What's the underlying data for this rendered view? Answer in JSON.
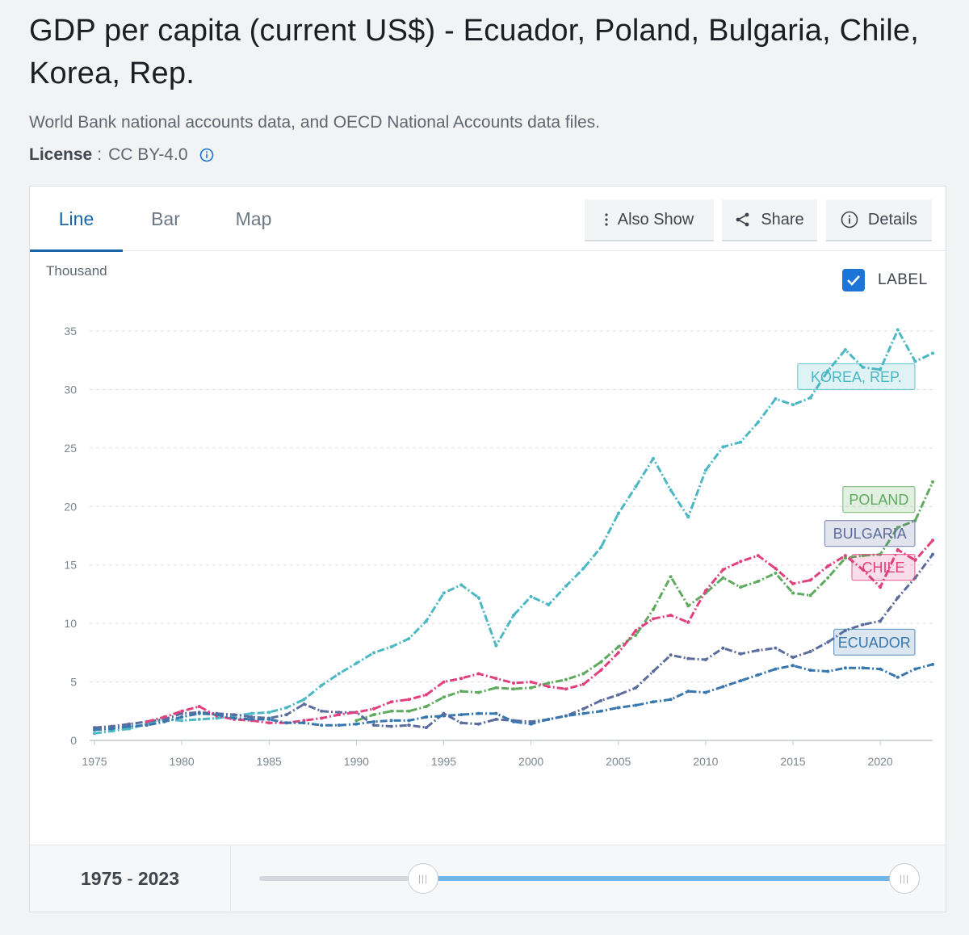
{
  "page": {
    "title": "GDP per capita (current US$) - Ecuador, Poland, Bulgaria, Chile, Korea, Rep.",
    "source": "World Bank national accounts data, and OECD National Accounts data files.",
    "license_label": "License",
    "license_sep": ":",
    "license_value": "CC BY-4.0"
  },
  "tabs": [
    {
      "label": "Line",
      "active": true
    },
    {
      "label": "Bar",
      "active": false
    },
    {
      "label": "Map",
      "active": false
    }
  ],
  "toolbar": {
    "also_show": "Also Show",
    "share": "Share",
    "details": "Details"
  },
  "label_toggle": {
    "text": "LABEL",
    "checked": true
  },
  "range": {
    "start": "1975",
    "sep": "-",
    "end": "2023"
  },
  "icons": {
    "info": "info-icon",
    "more": "more-vertical-icon",
    "share": "share-icon",
    "details": "info-circle-icon",
    "check": "check-icon",
    "handle": "slider-grip-icon"
  },
  "chart_data": {
    "type": "line",
    "unit_label": "Thousand",
    "x": [
      1975,
      1976,
      1977,
      1978,
      1979,
      1980,
      1981,
      1982,
      1983,
      1984,
      1985,
      1986,
      1987,
      1988,
      1989,
      1990,
      1991,
      1992,
      1993,
      1994,
      1995,
      1996,
      1997,
      1998,
      1999,
      2000,
      2001,
      2002,
      2003,
      2004,
      2005,
      2006,
      2007,
      2008,
      2009,
      2010,
      2011,
      2012,
      2013,
      2014,
      2015,
      2016,
      2017,
      2018,
      2019,
      2020,
      2021,
      2022,
      2023
    ],
    "xticks": [
      1975,
      1980,
      1985,
      1990,
      1995,
      2000,
      2005,
      2010,
      2015,
      2020
    ],
    "ylim": [
      0,
      35
    ],
    "yticks": [
      0,
      5,
      10,
      15,
      20,
      25,
      30,
      35
    ],
    "grid": true,
    "series": [
      {
        "name": "KOREA, REP.",
        "color": "#4bb8c4",
        "label_y": 31.1,
        "values": [
          0.6,
          0.8,
          1.0,
          1.4,
          1.8,
          1.7,
          1.8,
          1.9,
          2.1,
          2.3,
          2.4,
          2.8,
          3.5,
          4.7,
          5.7,
          6.6,
          7.5,
          8.0,
          8.7,
          10.2,
          12.6,
          13.3,
          12.2,
          8.1,
          10.7,
          12.3,
          11.6,
          13.2,
          14.7,
          16.5,
          19.4,
          21.7,
          24.1,
          21.4,
          19.1,
          23.1,
          25.1,
          25.5,
          27.2,
          29.2,
          28.7,
          29.3,
          31.6,
          33.4,
          31.9,
          31.7,
          35.1,
          32.4,
          33.1
        ]
      },
      {
        "name": "POLAND",
        "color": "#5faa5f",
        "label_y": 20.6,
        "values": [
          null,
          null,
          null,
          null,
          null,
          null,
          null,
          null,
          null,
          null,
          null,
          null,
          null,
          null,
          null,
          1.7,
          2.2,
          2.5,
          2.5,
          2.9,
          3.7,
          4.2,
          4.1,
          4.5,
          4.4,
          4.5,
          4.9,
          5.2,
          5.7,
          6.7,
          8.0,
          9.0,
          11.2,
          14.0,
          11.5,
          12.6,
          13.9,
          13.1,
          13.6,
          14.3,
          12.6,
          12.4,
          13.9,
          15.6,
          15.8,
          15.9,
          18.2,
          18.8,
          22.1
        ]
      },
      {
        "name": "BULGARIA",
        "color": "#5c6c9c",
        "label_y": 17.7,
        "values": [
          1.1,
          1.2,
          1.4,
          1.6,
          1.8,
          2.3,
          2.4,
          2.3,
          2.2,
          2.0,
          1.9,
          2.2,
          3.1,
          2.5,
          2.4,
          2.4,
          1.3,
          1.2,
          1.3,
          1.1,
          2.3,
          1.5,
          1.4,
          1.8,
          1.7,
          1.6,
          1.8,
          2.1,
          2.7,
          3.4,
          3.9,
          4.5,
          5.9,
          7.3,
          7.0,
          6.9,
          7.9,
          7.4,
          7.7,
          7.9,
          7.1,
          7.6,
          8.4,
          9.4,
          9.9,
          10.2,
          12.2,
          13.9,
          15.9
        ]
      },
      {
        "name": "CHILE",
        "color": "#e0417e",
        "label_y": 14.8,
        "values": [
          null,
          null,
          null,
          1.6,
          2.0,
          2.5,
          2.9,
          2.1,
          1.8,
          1.7,
          1.5,
          1.5,
          1.7,
          1.9,
          2.2,
          2.4,
          2.7,
          3.3,
          3.5,
          3.9,
          5.0,
          5.3,
          5.7,
          5.3,
          4.9,
          5.0,
          4.6,
          4.4,
          4.8,
          6.0,
          7.5,
          9.4,
          10.4,
          10.7,
          10.1,
          12.8,
          14.6,
          15.3,
          15.8,
          14.7,
          13.4,
          13.7,
          14.9,
          15.8,
          14.6,
          13.1,
          16.3,
          15.4,
          17.1
        ]
      },
      {
        "name": "ECUADOR",
        "color": "#3777ad",
        "label_y": 8.4,
        "values": [
          0.9,
          1.0,
          1.2,
          1.3,
          1.6,
          2.0,
          2.3,
          2.2,
          1.9,
          1.8,
          1.8,
          1.5,
          1.5,
          1.3,
          1.3,
          1.4,
          1.6,
          1.7,
          1.7,
          2.0,
          2.1,
          2.2,
          2.3,
          2.3,
          1.6,
          1.4,
          1.8,
          2.1,
          2.3,
          2.5,
          2.8,
          3.0,
          3.3,
          3.5,
          4.2,
          4.1,
          4.6,
          5.1,
          5.6,
          6.1,
          6.4,
          6.0,
          5.9,
          6.2,
          6.2,
          6.1,
          5.4,
          6.1,
          6.5
        ]
      }
    ]
  }
}
